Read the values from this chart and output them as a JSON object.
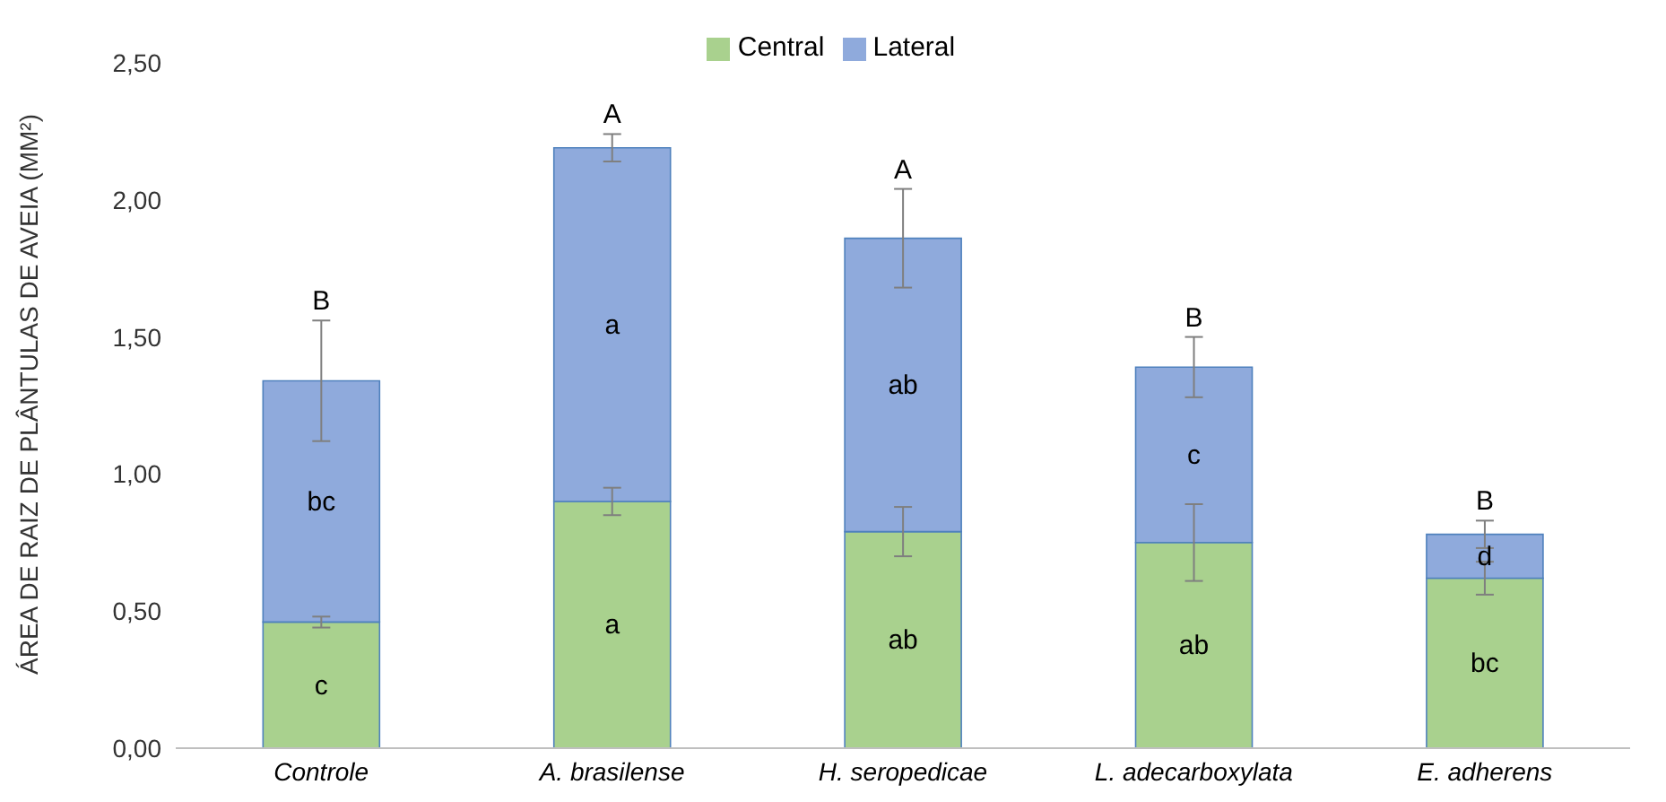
{
  "chart_data": {
    "type": "bar",
    "stacked": true,
    "ylabel": "ÁREA DE RAIZ DE PLÂNTULAS  DE AVEIA (MM²)",
    "categories": [
      "Controle",
      "A. brasilense",
      "H. seropedicae",
      "L. adecarboxylata",
      "E. adherens"
    ],
    "series": [
      {
        "name": "Central",
        "color": "#a9d18e",
        "values": [
          0.46,
          0.9,
          0.79,
          0.75,
          0.62
        ],
        "errors": [
          0.02,
          0.05,
          0.09,
          0.14,
          0.06
        ],
        "value_labels": [
          "c",
          "a",
          "ab",
          "ab",
          "bc"
        ]
      },
      {
        "name": "Lateral",
        "color": "#8faadc",
        "values": [
          0.88,
          1.29,
          1.07,
          0.64,
          0.16
        ],
        "errors": [
          0.22,
          0.05,
          0.18,
          0.11,
          0.05
        ],
        "value_labels": [
          "bc",
          "a",
          "ab",
          "c",
          "d"
        ]
      }
    ],
    "totals": [
      "B",
      "A",
      "A",
      "B",
      "B"
    ],
    "ylim": [
      0,
      2.5
    ],
    "yticks": [
      {
        "value": 0,
        "label": "0,00"
      },
      {
        "value": 0.5,
        "label": "0,50"
      },
      {
        "value": 1,
        "label": "1,00"
      },
      {
        "value": 1.5,
        "label": "1,50"
      },
      {
        "value": 2,
        "label": "2,00"
      },
      {
        "value": 2.5,
        "label": "2,50"
      }
    ],
    "grid": false,
    "legend": "top"
  }
}
